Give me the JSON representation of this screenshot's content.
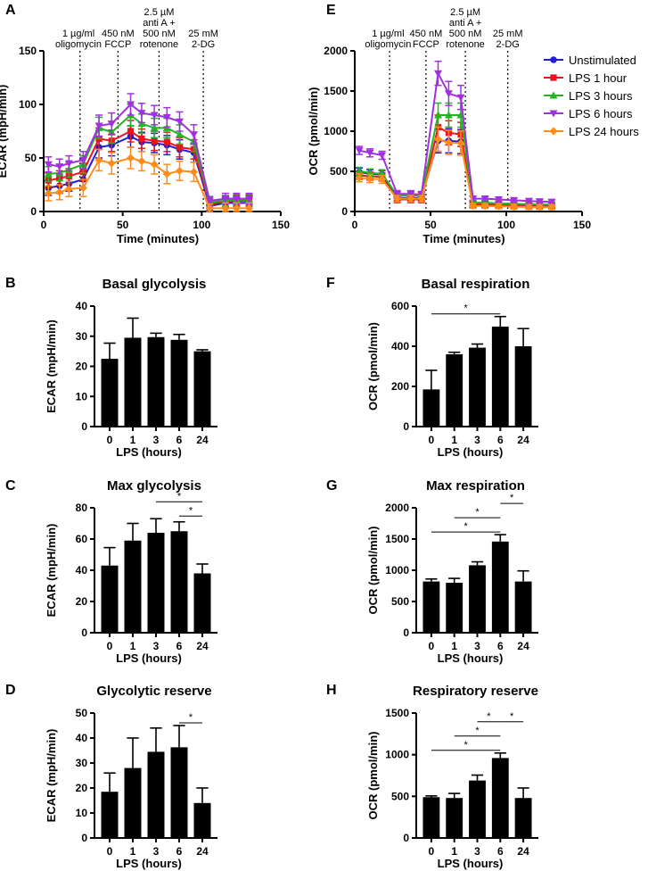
{
  "chart_data": [
    {
      "id": "A",
      "panel_label": "A",
      "type": "line",
      "title": "",
      "xlabel": "Time (minutes)",
      "ylabel": "ECAR (mpH/min)",
      "xlim": [
        0,
        150
      ],
      "ylim": [
        0,
        150
      ],
      "xticks": [
        "0",
        "50",
        "100",
        "150"
      ],
      "yticks": [
        "0",
        "50",
        "100",
        "150"
      ],
      "x": [
        3,
        10,
        16,
        25,
        35,
        43,
        55,
        62,
        70,
        78,
        86,
        95,
        105,
        115,
        122,
        130
      ],
      "series": [
        {
          "name": "Unstimulated",
          "color": "#1f1fd0",
          "values": [
            22,
            24,
            26,
            30,
            60,
            62,
            70,
            65,
            64,
            62,
            58,
            55,
            5,
            8,
            8,
            8
          ],
          "err": [
            7,
            7,
            7,
            8,
            10,
            10,
            10,
            9,
            9,
            9,
            9,
            9,
            4,
            5,
            5,
            5
          ]
        },
        {
          "name": "LPS 1 hour",
          "color": "#e8141e",
          "values": [
            29,
            31,
            33,
            37,
            68,
            66,
            75,
            68,
            66,
            65,
            60,
            58,
            7,
            9,
            10,
            10
          ],
          "err": [
            7,
            7,
            7,
            8,
            10,
            10,
            10,
            9,
            9,
            9,
            9,
            9,
            4,
            5,
            5,
            5
          ]
        },
        {
          "name": "LPS 3 hours",
          "color": "#22b422",
          "values": [
            35,
            36,
            39,
            44,
            78,
            74,
            90,
            82,
            78,
            78,
            72,
            65,
            9,
            10,
            11,
            11
          ],
          "err": [
            7,
            7,
            7,
            8,
            10,
            10,
            10,
            9,
            9,
            9,
            9,
            9,
            4,
            5,
            5,
            5
          ]
        },
        {
          "name": "LPS 6 hours",
          "color": "#a030e0",
          "values": [
            44,
            42,
            45,
            48,
            80,
            82,
            100,
            92,
            90,
            88,
            84,
            72,
            10,
            12,
            12,
            12
          ],
          "err": [
            7,
            7,
            7,
            8,
            10,
            10,
            10,
            9,
            9,
            9,
            9,
            9,
            4,
            5,
            5,
            5
          ]
        },
        {
          "name": "LPS 24 hours",
          "color": "#ff8c1a",
          "values": [
            17,
            18,
            21,
            22,
            48,
            45,
            50,
            47,
            44,
            35,
            38,
            37,
            3,
            3,
            3,
            3
          ],
          "err": [
            7,
            7,
            7,
            8,
            10,
            10,
            10,
            9,
            9,
            9,
            9,
            9,
            4,
            5,
            5,
            5
          ]
        }
      ],
      "injection_times": [
        23,
        47,
        73,
        101
      ],
      "annotations": [
        {
          "x": 22,
          "lines": [
            "1 µg/ml",
            "oligomycin"
          ]
        },
        {
          "x": 47,
          "lines": [
            "450 nM",
            "FCCP"
          ]
        },
        {
          "x": 73,
          "lines": [
            "2.5 µM",
            "anti  A +",
            "500 nM",
            "rotenone"
          ]
        },
        {
          "x": 101,
          "lines": [
            "25 mM",
            "2-DG"
          ]
        }
      ]
    },
    {
      "id": "E",
      "panel_label": "E",
      "type": "line",
      "title": "",
      "xlabel": "Time (minutes)",
      "ylabel": "OCR (pmol/min)",
      "xlim": [
        0,
        150
      ],
      "ylim": [
        0,
        2000
      ],
      "xticks": [
        "0",
        "50",
        "100",
        "150"
      ],
      "yticks": [
        "0",
        "500",
        "1000",
        "1500",
        "2000"
      ],
      "x": [
        3,
        10,
        18,
        28,
        37,
        44,
        55,
        62,
        70,
        78,
        86,
        95,
        105,
        115,
        122,
        130
      ],
      "series": [
        {
          "name": "Unstimulated",
          "color": "#1f1fd0",
          "values": [
            490,
            470,
            460,
            170,
            170,
            170,
            880,
            880,
            870,
            80,
            80,
            75,
            70,
            65,
            60,
            60
          ],
          "err": [
            50,
            50,
            50,
            40,
            40,
            40,
            150,
            150,
            150,
            30,
            30,
            30,
            30,
            30,
            30,
            30
          ]
        },
        {
          "name": "LPS 1 hour",
          "color": "#e8141e",
          "values": [
            450,
            440,
            430,
            150,
            150,
            150,
            1050,
            980,
            960,
            95,
            90,
            85,
            80,
            75,
            70,
            70
          ],
          "err": [
            50,
            50,
            50,
            40,
            40,
            40,
            150,
            150,
            150,
            30,
            30,
            30,
            30,
            30,
            30,
            30
          ]
        },
        {
          "name": "LPS 3 hours",
          "color": "#22b422",
          "values": [
            500,
            480,
            470,
            200,
            200,
            200,
            1200,
            1200,
            1200,
            110,
            110,
            100,
            95,
            90,
            85,
            85
          ],
          "err": [
            50,
            50,
            50,
            40,
            40,
            40,
            150,
            150,
            150,
            30,
            30,
            30,
            30,
            30,
            30,
            30
          ]
        },
        {
          "name": "LPS 6 hours",
          "color": "#a030e0",
          "values": [
            760,
            730,
            700,
            220,
            220,
            210,
            1720,
            1470,
            1420,
            160,
            160,
            150,
            140,
            130,
            125,
            120
          ],
          "err": [
            50,
            50,
            50,
            40,
            40,
            40,
            150,
            150,
            150,
            30,
            30,
            30,
            30,
            30,
            30,
            30
          ]
        },
        {
          "name": "LPS 24 hours",
          "color": "#ff8c1a",
          "values": [
            420,
            410,
            400,
            160,
            160,
            160,
            900,
            860,
            850,
            70,
            70,
            65,
            60,
            55,
            55,
            55
          ],
          "err": [
            50,
            50,
            50,
            40,
            40,
            40,
            150,
            150,
            150,
            30,
            30,
            30,
            30,
            30,
            30,
            30
          ]
        }
      ],
      "injection_times": [
        23,
        47,
        73,
        101
      ],
      "annotations": [
        {
          "x": 22,
          "lines": [
            "1 µg/ml",
            "oligomycin"
          ]
        },
        {
          "x": 47,
          "lines": [
            "450 nM",
            "FCCP"
          ]
        },
        {
          "x": 73,
          "lines": [
            "2.5 µM",
            "anti  A +",
            "500 nM",
            "rotenone"
          ]
        },
        {
          "x": 101,
          "lines": [
            "25 mM",
            "2-DG"
          ]
        }
      ],
      "legend": {
        "placement": "right",
        "entries": [
          "Unstimulated",
          "LPS 1 hour",
          "LPS 3 hours",
          "LPS 6 hours",
          "LPS 24 hours"
        ]
      }
    },
    {
      "id": "B",
      "panel_label": "B",
      "type": "bar",
      "title": "Basal glycolysis",
      "xlabel": "LPS (hours)",
      "ylabel": "ECAR (mpH/min)",
      "categories": [
        "0",
        "1",
        "3",
        "6",
        "24"
      ],
      "values": [
        22.5,
        29.5,
        29.7,
        28.8,
        25.0
      ],
      "err": [
        5.2,
        6.5,
        1.3,
        1.8,
        0.5
      ],
      "ylim": [
        0,
        40
      ],
      "yticks": [
        "0",
        "10",
        "20",
        "30",
        "40"
      ],
      "significance": []
    },
    {
      "id": "F",
      "panel_label": "F",
      "type": "bar",
      "title": "Basal respiration",
      "xlabel": "LPS (hours)",
      "ylabel": "OCR (pmol/min)",
      "categories": [
        "0",
        "1",
        "3",
        "6",
        "24"
      ],
      "values": [
        185,
        360,
        393,
        498,
        400
      ],
      "err": [
        95,
        10,
        18,
        50,
        88
      ],
      "ylim": [
        0,
        600
      ],
      "yticks": [
        "0",
        "200",
        "400",
        "600"
      ],
      "significance": [
        {
          "from": 0,
          "to": 3,
          "level": 1,
          "text": "*"
        }
      ]
    },
    {
      "id": "C",
      "panel_label": "C",
      "type": "bar",
      "title": "Max glycolysis",
      "xlabel": "LPS (hours)",
      "ylabel": "ECAR (mpH/min)",
      "categories": [
        "0",
        "1",
        "3",
        "6",
        "24"
      ],
      "values": [
        43,
        59,
        64,
        65,
        38
      ],
      "err": [
        11.5,
        11,
        9,
        6,
        6
      ],
      "ylim": [
        0,
        80
      ],
      "yticks": [
        "0",
        "20",
        "40",
        "60",
        "80"
      ],
      "significance": [
        {
          "from": 2,
          "to": 4,
          "level": 2,
          "text": "*"
        },
        {
          "from": 3,
          "to": 4,
          "level": 1,
          "text": "*"
        }
      ]
    },
    {
      "id": "G",
      "panel_label": "G",
      "type": "bar",
      "title": "Max respiration",
      "xlabel": "LPS (hours)",
      "ylabel": "OCR (pmol/min)",
      "categories": [
        "0",
        "1",
        "3",
        "6",
        "24"
      ],
      "values": [
        820,
        800,
        1080,
        1460,
        820
      ],
      "err": [
        40,
        70,
        55,
        110,
        170
      ],
      "ylim": [
        0,
        2000
      ],
      "yticks": [
        "0",
        "500",
        "1000",
        "1500",
        "2000"
      ],
      "significance": [
        {
          "from": 0,
          "to": 3,
          "level": 1,
          "text": "*"
        },
        {
          "from": 1,
          "to": 3,
          "level": 2,
          "text": "*"
        },
        {
          "from": 3,
          "to": 4,
          "level": 3,
          "text": "*"
        }
      ]
    },
    {
      "id": "D",
      "panel_label": "D",
      "type": "bar",
      "title": "Glycolytic reserve",
      "xlabel": "LPS (hours)",
      "ylabel": "ECAR (mpH/min)",
      "categories": [
        "0",
        "1",
        "3",
        "6",
        "24"
      ],
      "values": [
        18.5,
        28,
        34.5,
        36.3,
        14
      ],
      "err": [
        7.5,
        12,
        9.5,
        8.7,
        6
      ],
      "ylim": [
        0,
        50
      ],
      "yticks": [
        "0",
        "10",
        "20",
        "30",
        "40",
        "50"
      ],
      "significance": [
        {
          "from": 3,
          "to": 4,
          "level": 1,
          "text": "*"
        }
      ]
    },
    {
      "id": "H",
      "panel_label": "H",
      "type": "bar",
      "title": "Respiratory reserve",
      "xlabel": "LPS (hours)",
      "ylabel": "OCR (pmol/min)",
      "categories": [
        "0",
        "1",
        "3",
        "6",
        "24"
      ],
      "values": [
        490,
        480,
        690,
        960,
        480
      ],
      "err": [
        15,
        55,
        65,
        60,
        120
      ],
      "ylim": [
        0,
        1500
      ],
      "yticks": [
        "0",
        "500",
        "1000",
        "1500"
      ],
      "significance": [
        {
          "from": 0,
          "to": 3,
          "level": 1,
          "text": "*"
        },
        {
          "from": 1,
          "to": 3,
          "level": 2,
          "text": "*"
        },
        {
          "from": 2,
          "to": 3,
          "level": 3,
          "text": "*"
        },
        {
          "from": 3,
          "to": 4,
          "level": 3,
          "text": "*"
        }
      ]
    }
  ]
}
